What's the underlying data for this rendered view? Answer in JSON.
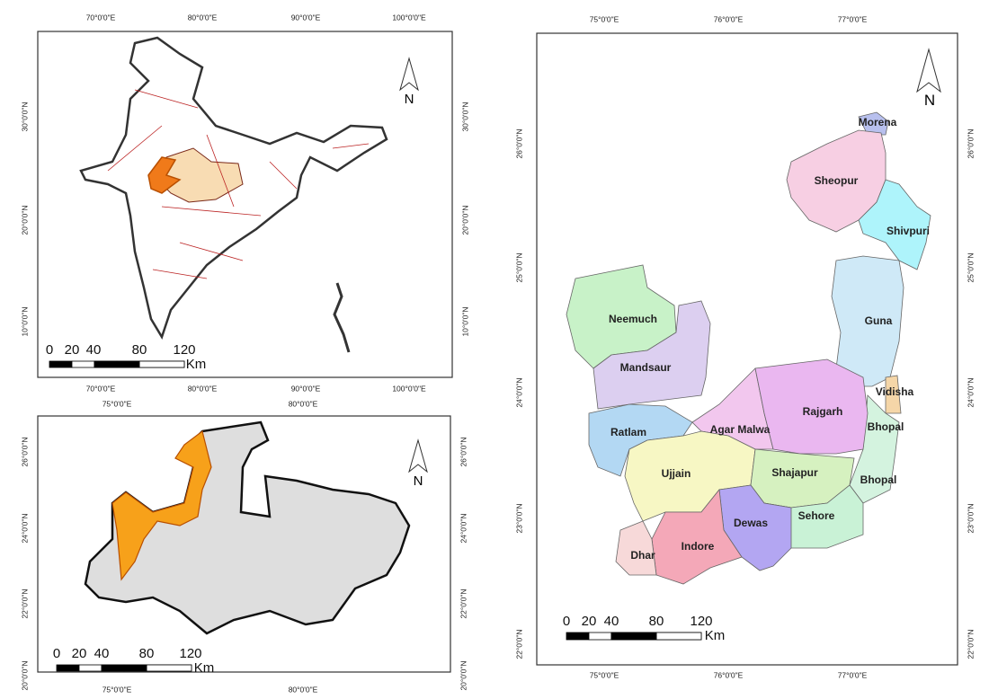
{
  "india_map": {
    "x_labels": [
      "70°0'0\"E",
      "80°0'0\"E",
      "90°0'0\"E",
      "100°0'0\"E"
    ],
    "y_labels": [
      "30°0'0\"N",
      "20°0'0\"N",
      "10°0'0\"N"
    ],
    "north": "N",
    "scale_bar": {
      "labels": [
        "0",
        "20",
        "40",
        "80",
        "120"
      ],
      "unit": "Km"
    }
  },
  "mp_map": {
    "x_labels": [
      "75°0'0\"E",
      "80°0'0\"E"
    ],
    "y_labels": [
      "26°0'0\"N",
      "24°0'0\"N",
      "22°0'0\"N",
      "20°0'0\"N"
    ],
    "north": "N",
    "scale_bar": {
      "labels": [
        "0",
        "20",
        "40",
        "80",
        "120"
      ],
      "unit": "Km"
    }
  },
  "district_map": {
    "x_labels": [
      "75°0'0\"E",
      "76°0'0\"E",
      "77°0'0\"E"
    ],
    "y_labels": [
      "26°0'0\"N",
      "25°0'0\"N",
      "24°0'0\"N",
      "23°0'0\"N",
      "22°0'0\"N"
    ],
    "north": "N",
    "scale_bar": {
      "labels": [
        "0",
        "20",
        "40",
        "80",
        "120"
      ],
      "unit": "Km"
    },
    "districts": [
      "Morena",
      "Sheopur",
      "Shivpuri",
      "Guna",
      "Vidisha",
      "Bhopal",
      "Rajgarh",
      "Agar Malwa",
      "Neemuch",
      "Mandsaur",
      "Ratlam",
      "Ujjain",
      "Shajapur",
      "Bhopal",
      "Sehore",
      "Dewas",
      "Indore",
      "Dhar"
    ]
  }
}
